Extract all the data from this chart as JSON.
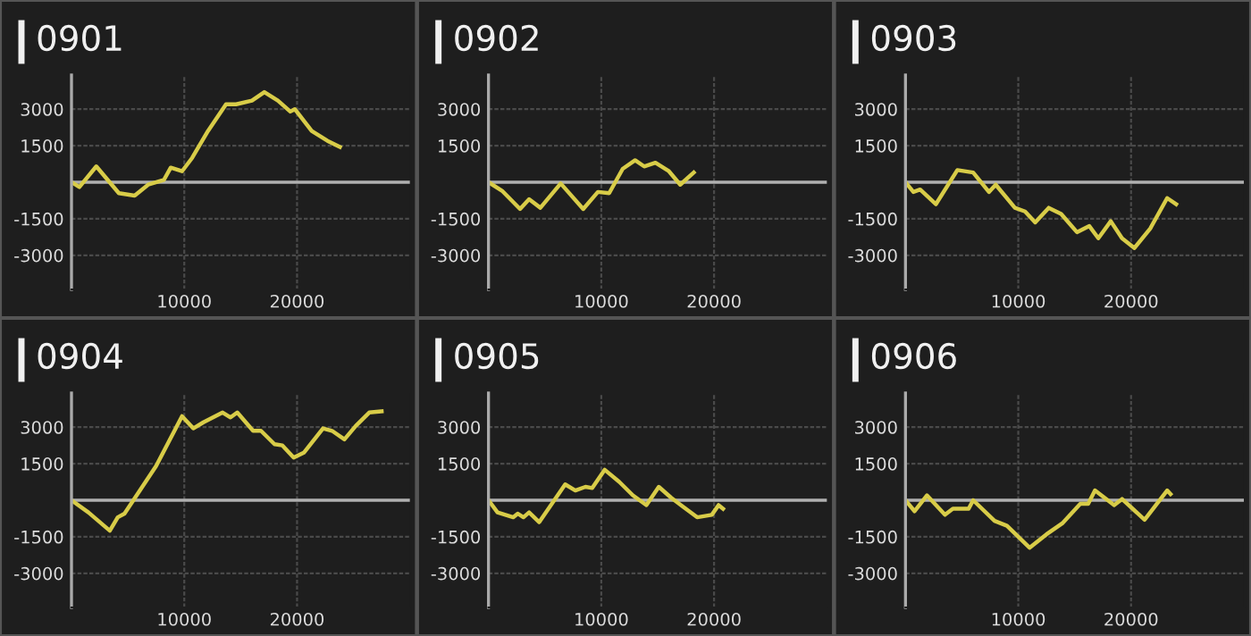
{
  "chart_data": [
    {
      "type": "line",
      "title": "0901",
      "x": [
        0,
        700,
        2200,
        4200,
        5600,
        6800,
        8200,
        8800,
        9800,
        10700,
        12100,
        13700,
        14600,
        16000,
        17100,
        18300,
        19400,
        19800,
        21300,
        22700,
        23800
      ],
      "series": [
        {
          "color": "#d8cc48",
          "values": [
            0,
            -200,
            650,
            -450,
            -550,
            -100,
            100,
            600,
            450,
            1000,
            2100,
            3200,
            3200,
            3350,
            3700,
            3350,
            2900,
            3000,
            2100,
            1700,
            1450
          ]
        }
      ],
      "xlim": [
        0,
        30000
      ],
      "ylim": [
        -4400,
        4400
      ],
      "xticks": [
        10000,
        20000
      ],
      "yticks": [
        -3000,
        -1500,
        1500,
        3000
      ],
      "grid": true,
      "ref_lines": [
        {
          "axis": "y",
          "value": 0,
          "color": "#b0b0b0"
        }
      ]
    },
    {
      "type": "line",
      "title": "0902",
      "x": [
        0,
        1200,
        2800,
        3600,
        4600,
        6400,
        8400,
        9700,
        10700,
        11900,
        13000,
        13800,
        14800,
        16000,
        17000,
        18200
      ],
      "series": [
        {
          "color": "#d8cc48",
          "values": [
            0,
            -350,
            -1100,
            -700,
            -1050,
            -50,
            -1100,
            -400,
            -450,
            550,
            900,
            650,
            800,
            450,
            -100,
            400
          ]
        }
      ],
      "xlim": [
        0,
        30000
      ],
      "ylim": [
        -4400,
        4400
      ],
      "xticks": [
        10000,
        20000
      ],
      "yticks": [
        -3000,
        -1500,
        1500,
        3000
      ],
      "grid": true,
      "ref_lines": [
        {
          "axis": "y",
          "value": 0,
          "color": "#b0b0b0"
        }
      ]
    },
    {
      "type": "line",
      "title": "0903",
      "x": [
        0,
        700,
        1300,
        2700,
        4600,
        6000,
        7400,
        8000,
        9700,
        10600,
        11500,
        12700,
        13800,
        15200,
        16300,
        17100,
        18200,
        19200,
        20300,
        21700,
        23200,
        24000
      ],
      "series": [
        {
          "color": "#d8cc48",
          "values": [
            0,
            -400,
            -300,
            -900,
            500,
            400,
            -400,
            -100,
            -1050,
            -1200,
            -1650,
            -1050,
            -1300,
            -2050,
            -1800,
            -2300,
            -1600,
            -2300,
            -2700,
            -1900,
            -650,
            -900
          ]
        }
      ],
      "xlim": [
        0,
        30000
      ],
      "ylim": [
        -4400,
        4400
      ],
      "xticks": [
        10000,
        20000
      ],
      "yticks": [
        -3000,
        -1500,
        1500,
        3000
      ],
      "grid": true,
      "ref_lines": [
        {
          "axis": "y",
          "value": 0,
          "color": "#b0b0b0"
        }
      ]
    },
    {
      "type": "line",
      "title": "0904",
      "x": [
        0,
        1500,
        3400,
        4100,
        4700,
        7500,
        9800,
        10800,
        11700,
        13400,
        14100,
        14700,
        16100,
        16800,
        18000,
        18700,
        19700,
        20600,
        22300,
        23100,
        24200,
        25200,
        26400,
        27500
      ],
      "series": [
        {
          "color": "#d8cc48",
          "values": [
            0,
            -500,
            -1250,
            -700,
            -550,
            1400,
            3450,
            2950,
            3200,
            3600,
            3400,
            3600,
            2850,
            2850,
            2300,
            2250,
            1750,
            1950,
            2950,
            2850,
            2500,
            3050,
            3600,
            3650
          ]
        }
      ],
      "xlim": [
        0,
        30000
      ],
      "ylim": [
        -4400,
        4400
      ],
      "xticks": [
        10000,
        20000
      ],
      "yticks": [
        -3000,
        -1500,
        1500,
        3000
      ],
      "grid": true,
      "ref_lines": [
        {
          "axis": "y",
          "value": 0,
          "color": "#b0b0b0"
        }
      ]
    },
    {
      "type": "line",
      "title": "0905",
      "x": [
        0,
        800,
        2200,
        2600,
        3100,
        3600,
        4500,
        6800,
        7700,
        8600,
        9200,
        10300,
        11600,
        12800,
        14000,
        15100,
        16200,
        18500,
        19800,
        20400,
        20800
      ],
      "series": [
        {
          "color": "#d8cc48",
          "values": [
            0,
            -500,
            -700,
            -550,
            -700,
            -500,
            -900,
            650,
            400,
            550,
            500,
            1250,
            750,
            200,
            -200,
            550,
            100,
            -700,
            -600,
            -200,
            -350
          ]
        }
      ],
      "xlim": [
        0,
        30000
      ],
      "ylim": [
        -4400,
        4400
      ],
      "xticks": [
        10000,
        20000
      ],
      "yticks": [
        -3000,
        -1500,
        1500,
        3000
      ],
      "grid": true,
      "ref_lines": [
        {
          "axis": "y",
          "value": 0,
          "color": "#b0b0b0"
        }
      ]
    },
    {
      "type": "line",
      "title": "0906",
      "x": [
        0,
        800,
        1900,
        3500,
        4200,
        5600,
        6000,
        7900,
        9000,
        11000,
        12500,
        13900,
        15500,
        16200,
        16800,
        18500,
        19200,
        21200,
        23200,
        23500
      ],
      "series": [
        {
          "color": "#d8cc48",
          "values": [
            0,
            -450,
            200,
            -600,
            -350,
            -350,
            0,
            -850,
            -1050,
            -1950,
            -1400,
            -950,
            -150,
            -150,
            400,
            -200,
            50,
            -800,
            400,
            250
          ]
        }
      ],
      "xlim": [
        0,
        30000
      ],
      "ylim": [
        -4400,
        4400
      ],
      "xticks": [
        10000,
        20000
      ],
      "yticks": [
        -3000,
        -1500,
        1500,
        3000
      ],
      "grid": true,
      "ref_lines": [
        {
          "axis": "y",
          "value": 0,
          "color": "#b0b0b0"
        }
      ]
    }
  ]
}
